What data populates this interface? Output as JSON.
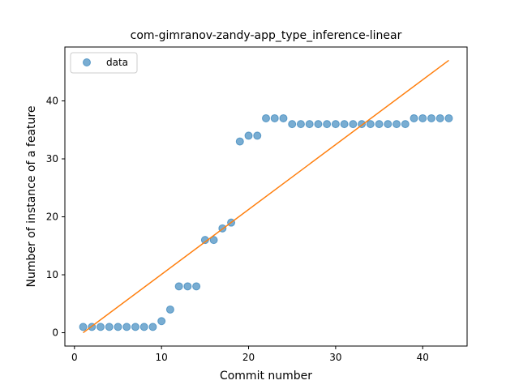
{
  "chart_data": {
    "type": "scatter",
    "title": "com-gimranov-zandy-app_type_inference-linear",
    "xlabel": "Commit number",
    "ylabel": "Number of instance of a feature",
    "xlim": [
      -1.1,
      45.1
    ],
    "ylim": [
      -2.3,
      49.3
    ],
    "xticks": [
      0,
      10,
      20,
      30,
      40
    ],
    "yticks": [
      0,
      10,
      20,
      30,
      40
    ],
    "grid": false,
    "legend_position": "top-left",
    "colors": {
      "data": "#1f77b4",
      "fit": "#ff7f0e"
    },
    "series": [
      {
        "name": "data",
        "kind": "scatter",
        "x": [
          1,
          2,
          3,
          4,
          5,
          6,
          7,
          8,
          9,
          10,
          11,
          12,
          13,
          14,
          15,
          16,
          17,
          18,
          19,
          20,
          21,
          22,
          23,
          24,
          25,
          26,
          27,
          28,
          29,
          30,
          31,
          32,
          33,
          34,
          35,
          36,
          37,
          38,
          39,
          40,
          41,
          42,
          43
        ],
        "y": [
          1,
          1,
          1,
          1,
          1,
          1,
          1,
          1,
          1,
          2,
          4,
          8,
          8,
          8,
          16,
          16,
          18,
          19,
          33,
          34,
          34,
          37,
          37,
          37,
          36,
          36,
          36,
          36,
          36,
          36,
          36,
          36,
          36,
          36,
          36,
          36,
          36,
          36,
          37,
          37,
          37,
          37,
          37
        ]
      },
      {
        "kind": "line",
        "x": [
          1,
          43
        ],
        "y": [
          0,
          47
        ]
      }
    ]
  }
}
